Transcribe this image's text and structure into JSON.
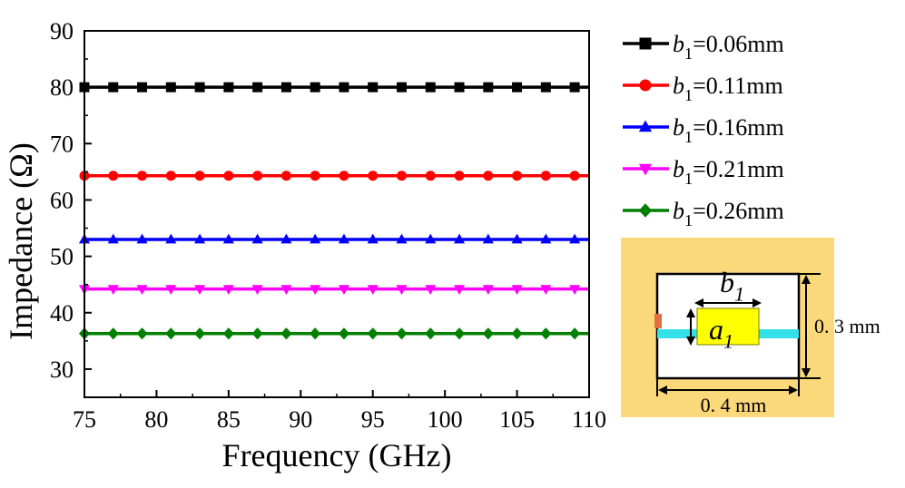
{
  "chart_data": {
    "type": "line",
    "xlabel": "Frequency (GHz)",
    "ylabel": "Impedance (Ω)",
    "xlim": [
      75,
      110
    ],
    "ylim": [
      25,
      90
    ],
    "xticks": [
      75,
      80,
      85,
      90,
      95,
      100,
      105,
      110
    ],
    "yticks": [
      30,
      40,
      50,
      60,
      70,
      80,
      90
    ],
    "x": [
      75,
      77,
      79,
      81,
      83,
      85,
      87,
      89,
      91,
      93,
      95,
      97,
      99,
      101,
      103,
      105,
      107,
      109
    ],
    "series": [
      {
        "name": "b1=0.06mm",
        "legend_var": "b",
        "legend_sub": "1",
        "legend_rest": "=0.06mm",
        "color": "#000000",
        "marker": "square",
        "value": 80.0
      },
      {
        "name": "b1=0.11mm",
        "legend_var": "b",
        "legend_sub": "1",
        "legend_rest": "=0.11mm",
        "color": "#ff0000",
        "marker": "circle",
        "value": 64.3
      },
      {
        "name": "b1=0.16mm",
        "legend_var": "b",
        "legend_sub": "1",
        "legend_rest": "=0.16mm",
        "color": "#0000ff",
        "marker": "triangle-up",
        "value": 53.0
      },
      {
        "name": "b1=0.21mm",
        "legend_var": "b",
        "legend_sub": "1",
        "legend_rest": "=0.21mm",
        "color": "#ff00ff",
        "marker": "triangle-down",
        "value": 44.2
      },
      {
        "name": "b1=0.26mm",
        "legend_var": "b",
        "legend_sub": "1",
        "legend_rest": "=0.26mm",
        "color": "#008000",
        "marker": "diamond",
        "value": 36.3
      }
    ],
    "legend_placement": "right"
  },
  "inset": {
    "background_color": "#fbd97b",
    "line_color": "#33e0e8",
    "patch_color": "#ffff00",
    "b_var": "b",
    "b_sub": "1",
    "a_var": "a",
    "a_sub": "1",
    "height_label": "0. 3 mm",
    "width_label": "0. 4 mm"
  }
}
